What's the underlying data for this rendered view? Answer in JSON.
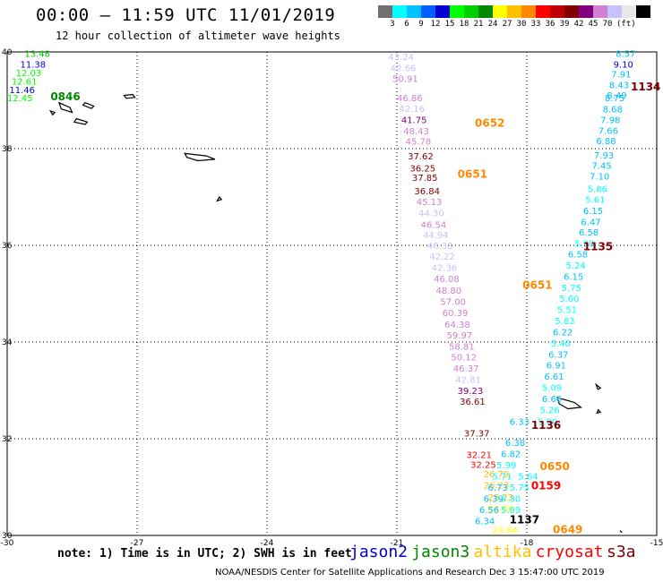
{
  "title": "00:00 — 11:59 UTC 11/01/2019",
  "subtitle": "12 hour collection of altimeter wave heights",
  "color_scale": {
    "colors": [
      "#707070",
      "#00ffff",
      "#00c0ff",
      "#0060ff",
      "#0000d0",
      "#00ff00",
      "#00d000",
      "#008800",
      "#ffff00",
      "#ffc000",
      "#ff8800",
      "#ff0000",
      "#c00000",
      "#800000",
      "#800080",
      "#d080d0",
      "#c8c0ff",
      "#e8e8e8",
      "#000000"
    ],
    "labels": [
      "3",
      "6",
      "9",
      "12",
      "15",
      "18",
      "21",
      "24",
      "27",
      "30",
      "33",
      "36",
      "39",
      "42",
      "45",
      "70"
    ],
    "unit": "(ft)"
  },
  "axes": {
    "lat_labels": [
      "40",
      "38",
      "36",
      "34",
      "32",
      "30"
    ],
    "lon_labels": [
      "-30",
      "-27",
      "-24",
      "-21",
      "-18",
      "-15"
    ]
  },
  "passes": [
    {
      "label": "0846",
      "color": "#008800",
      "lon": -29.0,
      "lat": 39.0
    },
    {
      "label": "0652",
      "color": "#ff8800",
      "lon": -19.2,
      "lat": 38.45
    },
    {
      "label": "0651",
      "color": "#ff8800",
      "lon": -19.6,
      "lat": 37.4
    },
    {
      "label": "0651",
      "color": "#ff8800",
      "lon": -18.1,
      "lat": 35.1
    },
    {
      "label": "1134",
      "color": "#800000",
      "lon": -15.6,
      "lat": 39.2
    },
    {
      "label": "1135",
      "color": "#800000",
      "lon": -16.7,
      "lat": 35.9
    },
    {
      "label": "1136",
      "color": "#800000",
      "lon": -17.9,
      "lat": 32.2
    },
    {
      "label": "0650",
      "color": "#ff8800",
      "lon": -17.7,
      "lat": 31.35
    },
    {
      "label": "0159",
      "color": "#ff0000",
      "lon": -17.9,
      "lat": 30.95
    },
    {
      "label": "1137",
      "color": "#000000",
      "lon": -18.4,
      "lat": 30.25
    },
    {
      "label": "0649",
      "color": "#ff8800",
      "lon": -17.4,
      "lat": 30.05
    }
  ],
  "observations": [
    {
      "v": "13.48",
      "color": "#00d000",
      "lon": -29.6,
      "lat": 39.9
    },
    {
      "v": "11.38",
      "color": "#0000d0",
      "lon": -29.7,
      "lat": 39.68
    },
    {
      "v": "12.03",
      "color": "#00ff00",
      "lon": -29.8,
      "lat": 39.5
    },
    {
      "v": "12.61",
      "color": "#00ff00",
      "lon": -29.9,
      "lat": 39.32
    },
    {
      "v": "11.46",
      "color": "#0000d0",
      "lon": -29.95,
      "lat": 39.15
    },
    {
      "v": "12.45",
      "color": "#00ff00",
      "lon": -30.0,
      "lat": 38.98
    },
    {
      "v": "43.24",
      "color": "#c8c0ff",
      "lon": -21.2,
      "lat": 39.83
    },
    {
      "v": "42.66",
      "color": "#c8c0ff",
      "lon": -21.15,
      "lat": 39.6
    },
    {
      "v": "50.91",
      "color": "#d080d0",
      "lon": -21.1,
      "lat": 39.38
    },
    {
      "v": "46.86",
      "color": "#d080d0",
      "lon": -21.0,
      "lat": 38.98
    },
    {
      "v": "42.16",
      "color": "#c8c0ff",
      "lon": -20.95,
      "lat": 38.76
    },
    {
      "v": "41.75",
      "color": "#800080",
      "lon": -20.9,
      "lat": 38.53
    },
    {
      "v": "48.43",
      "color": "#d080d0",
      "lon": -20.85,
      "lat": 38.3
    },
    {
      "v": "45.78",
      "color": "#d080d0",
      "lon": -20.8,
      "lat": 38.08
    },
    {
      "v": "37.62",
      "color": "#800000",
      "lon": -20.75,
      "lat": 37.78
    },
    {
      "v": "36.25",
      "color": "#800000",
      "lon": -20.7,
      "lat": 37.53
    },
    {
      "v": "37.85",
      "color": "#800000",
      "lon": -20.65,
      "lat": 37.33
    },
    {
      "v": "36.84",
      "color": "#800000",
      "lon": -20.6,
      "lat": 37.06
    },
    {
      "v": "45.13",
      "color": "#d080d0",
      "lon": -20.55,
      "lat": 36.83
    },
    {
      "v": "44.30",
      "color": "#c8c0ff",
      "lon": -20.5,
      "lat": 36.6
    },
    {
      "v": "46.54",
      "color": "#d080d0",
      "lon": -20.45,
      "lat": 36.36
    },
    {
      "v": "44.94",
      "color": "#c8c0ff",
      "lon": -20.4,
      "lat": 36.15
    },
    {
      "v": "46.38",
      "color": "#c8c0ff",
      "lon": -20.3,
      "lat": 35.93
    },
    {
      "v": "42.22",
      "color": "#c8c0ff",
      "lon": -20.25,
      "lat": 35.7
    },
    {
      "v": "42.36",
      "color": "#c8c0ff",
      "lon": -20.2,
      "lat": 35.47
    },
    {
      "v": "46.08",
      "color": "#d080d0",
      "lon": -20.15,
      "lat": 35.24
    },
    {
      "v": "48.80",
      "color": "#d080d0",
      "lon": -20.1,
      "lat": 35.0
    },
    {
      "v": "57.00",
      "color": "#d080d0",
      "lon": -20.0,
      "lat": 34.77
    },
    {
      "v": "60.39",
      "color": "#d080d0",
      "lon": -19.95,
      "lat": 34.54
    },
    {
      "v": "64.38",
      "color": "#d080d0",
      "lon": -19.9,
      "lat": 34.3
    },
    {
      "v": "59.97",
      "color": "#d080d0",
      "lon": -19.85,
      "lat": 34.07
    },
    {
      "v": "58.81",
      "color": "#d080d0",
      "lon": -19.8,
      "lat": 33.84
    },
    {
      "v": "50.12",
      "color": "#d080d0",
      "lon": -19.75,
      "lat": 33.62
    },
    {
      "v": "46.37",
      "color": "#d080d0",
      "lon": -19.7,
      "lat": 33.39
    },
    {
      "v": "42.81",
      "color": "#c8c0ff",
      "lon": -19.65,
      "lat": 33.16
    },
    {
      "v": "39.23",
      "color": "#800080",
      "lon": -19.6,
      "lat": 32.93
    },
    {
      "v": "36.61",
      "color": "#800000",
      "lon": -19.55,
      "lat": 32.7
    },
    {
      "v": "37.37",
      "color": "#800000",
      "lon": -19.45,
      "lat": 32.05
    },
    {
      "v": "32.21",
      "color": "#ff0000",
      "lon": -19.4,
      "lat": 31.6
    },
    {
      "v": "32.25",
      "color": "#ff0000",
      "lon": -19.3,
      "lat": 31.4
    },
    {
      "v": "26.79",
      "color": "#ffc000",
      "lon": -19.0,
      "lat": 31.2
    },
    {
      "v": "26.23",
      "color": "#ffc000",
      "lon": -19.0,
      "lat": 30.97
    },
    {
      "v": "25.23",
      "color": "#ffc000",
      "lon": -18.9,
      "lat": 30.72
    },
    {
      "v": "24.84",
      "color": "#ffff00",
      "lon": -18.9,
      "lat": 30.49
    },
    {
      "v": "24.64",
      "color": "#ffff00",
      "lon": -18.8,
      "lat": 30.05
    },
    {
      "v": "8.57",
      "color": "#00c0ff",
      "lon": -15.95,
      "lat": 39.9
    },
    {
      "v": "9.10",
      "color": "#0000d0",
      "lon": -16.0,
      "lat": 39.68
    },
    {
      "v": "7.91",
      "color": "#00c0ff",
      "lon": -16.05,
      "lat": 39.47
    },
    {
      "v": "8.43",
      "color": "#00c0ff",
      "lon": -16.1,
      "lat": 39.25
    },
    {
      "v": "8.49",
      "color": "#00c0ff",
      "lon": -16.15,
      "lat": 39.04
    },
    {
      "v": "8.75",
      "color": "#00c0ff",
      "lon": -16.2,
      "lat": 38.98
    },
    {
      "v": "8.68",
      "color": "#00c0ff",
      "lon": -16.25,
      "lat": 38.75
    },
    {
      "v": "7.98",
      "color": "#00c0ff",
      "lon": -16.3,
      "lat": 38.53
    },
    {
      "v": "7.66",
      "color": "#00c0ff",
      "lon": -16.35,
      "lat": 38.31
    },
    {
      "v": "6.88",
      "color": "#00c0ff",
      "lon": -16.4,
      "lat": 38.09
    },
    {
      "v": "7.93",
      "color": "#00c0ff",
      "lon": -16.45,
      "lat": 37.8
    },
    {
      "v": "7.45",
      "color": "#00c0ff",
      "lon": -16.5,
      "lat": 37.58
    },
    {
      "v": "7.10",
      "color": "#00c0ff",
      "lon": -16.55,
      "lat": 37.36
    },
    {
      "v": "5.86",
      "color": "#00ffff",
      "lon": -16.6,
      "lat": 37.1
    },
    {
      "v": "5.61",
      "color": "#00ffff",
      "lon": -16.65,
      "lat": 36.88
    },
    {
      "v": "6.15",
      "color": "#00c0ff",
      "lon": -16.7,
      "lat": 36.65
    },
    {
      "v": "6.47",
      "color": "#00c0ff",
      "lon": -16.75,
      "lat": 36.42
    },
    {
      "v": "6.58",
      "color": "#00c0ff",
      "lon": -16.8,
      "lat": 36.2
    },
    {
      "v": "5.90",
      "color": "#00ffff",
      "lon": -16.9,
      "lat": 35.97
    },
    {
      "v": "6.58",
      "color": "#00c0ff",
      "lon": -17.05,
      "lat": 35.75
    },
    {
      "v": "5.24",
      "color": "#00ffff",
      "lon": -17.1,
      "lat": 35.52
    },
    {
      "v": "6.15",
      "color": "#00c0ff",
      "lon": -17.15,
      "lat": 35.29
    },
    {
      "v": "5.75",
      "color": "#00ffff",
      "lon": -17.2,
      "lat": 35.06
    },
    {
      "v": "5.60",
      "color": "#00ffff",
      "lon": -17.25,
      "lat": 34.83
    },
    {
      "v": "5.51",
      "color": "#00ffff",
      "lon": -17.3,
      "lat": 34.6
    },
    {
      "v": "5.83",
      "color": "#00ffff",
      "lon": -17.35,
      "lat": 34.37
    },
    {
      "v": "6.22",
      "color": "#00c0ff",
      "lon": -17.4,
      "lat": 34.14
    },
    {
      "v": "5.40",
      "color": "#00ffff",
      "lon": -17.45,
      "lat": 33.91
    },
    {
      "v": "6.37",
      "color": "#00c0ff",
      "lon": -17.5,
      "lat": 33.68
    },
    {
      "v": "6.91",
      "color": "#00c0ff",
      "lon": -17.55,
      "lat": 33.45
    },
    {
      "v": "6.61",
      "color": "#00c0ff",
      "lon": -17.6,
      "lat": 33.22
    },
    {
      "v": "5.09",
      "color": "#00ffff",
      "lon": -17.65,
      "lat": 32.99
    },
    {
      "v": "6.66",
      "color": "#00c0ff",
      "lon": -17.65,
      "lat": 32.76
    },
    {
      "v": "5.26",
      "color": "#00ffff",
      "lon": -17.7,
      "lat": 32.53
    },
    {
      "v": "5.00",
      "color": "#00ffff",
      "lon": -17.75,
      "lat": 32.29
    },
    {
      "v": "6.33",
      "color": "#00c0ff",
      "lon": -18.4,
      "lat": 32.29
    },
    {
      "v": "6.38",
      "color": "#00c0ff",
      "lon": -18.5,
      "lat": 31.85
    },
    {
      "v": "6.82",
      "color": "#00c0ff",
      "lon": -18.6,
      "lat": 31.62
    },
    {
      "v": "5.99",
      "color": "#00ffff",
      "lon": -18.7,
      "lat": 31.39
    },
    {
      "v": "5.71",
      "color": "#00ffff",
      "lon": -18.8,
      "lat": 31.16
    },
    {
      "v": "6.73",
      "color": "#00c0ff",
      "lon": -18.9,
      "lat": 30.93
    },
    {
      "v": "6.39",
      "color": "#00c0ff",
      "lon": -19.0,
      "lat": 30.69
    },
    {
      "v": "6.56",
      "color": "#00c0ff",
      "lon": -19.1,
      "lat": 30.46
    },
    {
      "v": "6.34",
      "color": "#00c0ff",
      "lon": -19.2,
      "lat": 30.23
    },
    {
      "v": "5.30",
      "color": "#00ffff",
      "lon": -18.6,
      "lat": 30.69
    },
    {
      "v": "5.09",
      "color": "#00ffff",
      "lon": -18.6,
      "lat": 30.46
    },
    {
      "v": "5.75",
      "color": "#00ffff",
      "lon": -18.4,
      "lat": 30.93
    },
    {
      "v": "5.64",
      "color": "#00ffff",
      "lon": -18.2,
      "lat": 31.16
    }
  ],
  "note": "note: 1) Time is in UTC; 2) SWH is in feet",
  "satellites": [
    {
      "name": "jason2",
      "color": "#0000d0"
    },
    {
      "name": "jason3",
      "color": "#008800"
    },
    {
      "name": "altika",
      "color": "#ffc000"
    },
    {
      "name": "cryosat",
      "color": "#ff0000"
    },
    {
      "name": "s3a",
      "color": "#800000"
    }
  ],
  "footer": "NOAA/NESDIS Center for Satellite Applications and Research    Dec  3 15:47:00 UTC 2019"
}
